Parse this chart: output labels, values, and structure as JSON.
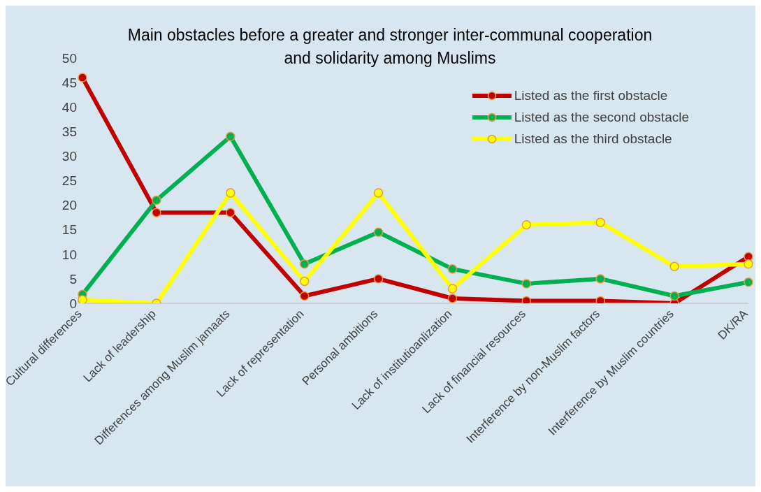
{
  "chart_data": {
    "type": "line",
    "title": "Main obstacles before a greater and stronger inter-communal cooperation\nand solidarity among Muslims",
    "categories": [
      "Cultural differences",
      "Lack of leadership",
      "Differences among Muslim jamaats",
      "Lack of representation",
      "Personal ambitions",
      "Lack of institutioanlization",
      "Lack of financial resources",
      "Interference by non-Muslim factors",
      "Interference by Muslim countries",
      "DK/RA"
    ],
    "series": [
      {
        "name": "Listed as the first obstacle",
        "color": "#c00000",
        "values": [
          46,
          18.5,
          18.5,
          1.5,
          5,
          1,
          0.5,
          0.5,
          0,
          9.5
        ]
      },
      {
        "name": "Listed as the second obstacle",
        "color": "#00b050",
        "values": [
          1.8,
          21,
          34,
          8,
          14.5,
          7,
          4,
          5,
          1.5,
          4.3
        ]
      },
      {
        "name": "Listed as the third obstacle",
        "color": "#ffff00",
        "values": [
          0.7,
          0,
          22.5,
          4.5,
          22.5,
          3,
          16,
          16.5,
          7.5,
          8
        ]
      }
    ],
    "ylim": [
      0,
      50
    ],
    "yticks": [
      0,
      5,
      10,
      15,
      20,
      25,
      30,
      35,
      40,
      45,
      50
    ],
    "grid": false,
    "legend": "top right",
    "marker": "circle",
    "line_style": "solid"
  }
}
